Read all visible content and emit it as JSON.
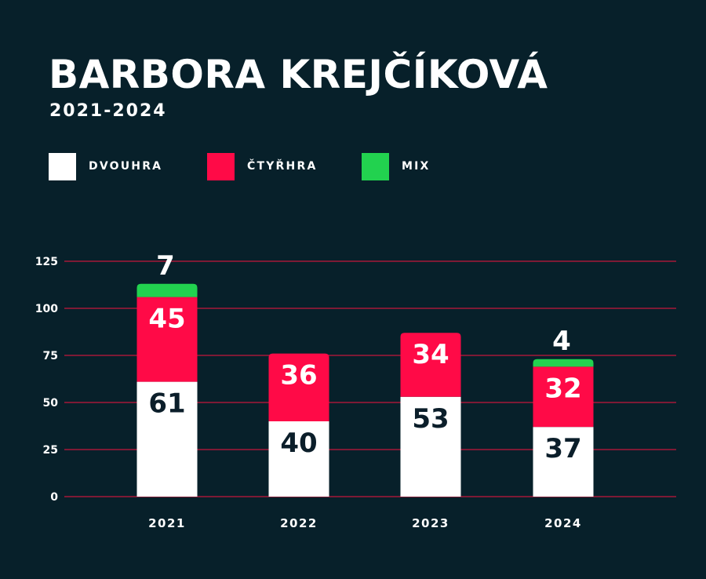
{
  "title": "BARBORA KREJČÍKOVÁ",
  "subtitle": "2021-2024",
  "legend": [
    {
      "label": "DVOUHRA",
      "color": "#ffffff"
    },
    {
      "label": "ČTYŘHRA",
      "color": "#ff0a47"
    },
    {
      "label": "MIX",
      "color": "#22d24f"
    }
  ],
  "chart_data": {
    "type": "bar",
    "stacked": true,
    "categories": [
      "2021",
      "2022",
      "2023",
      "2024"
    ],
    "series": [
      {
        "name": "DVOUHRA",
        "values": [
          61,
          40,
          53,
          37
        ],
        "color": "#ffffff",
        "label_color": "#0b1e2a"
      },
      {
        "name": "ČTYŘHRA",
        "values": [
          45,
          36,
          34,
          32
        ],
        "color": "#ff0a47",
        "label_color": "#ffffff"
      },
      {
        "name": "MIX",
        "values": [
          7,
          0,
          0,
          4
        ],
        "color": "#22d24f",
        "label_color": "#ffffff"
      }
    ],
    "yticks": [
      0,
      25,
      50,
      75,
      100,
      125
    ],
    "ylim": [
      0,
      125
    ],
    "grid": true,
    "grid_color": "#c4163c",
    "background": "#07202a"
  }
}
